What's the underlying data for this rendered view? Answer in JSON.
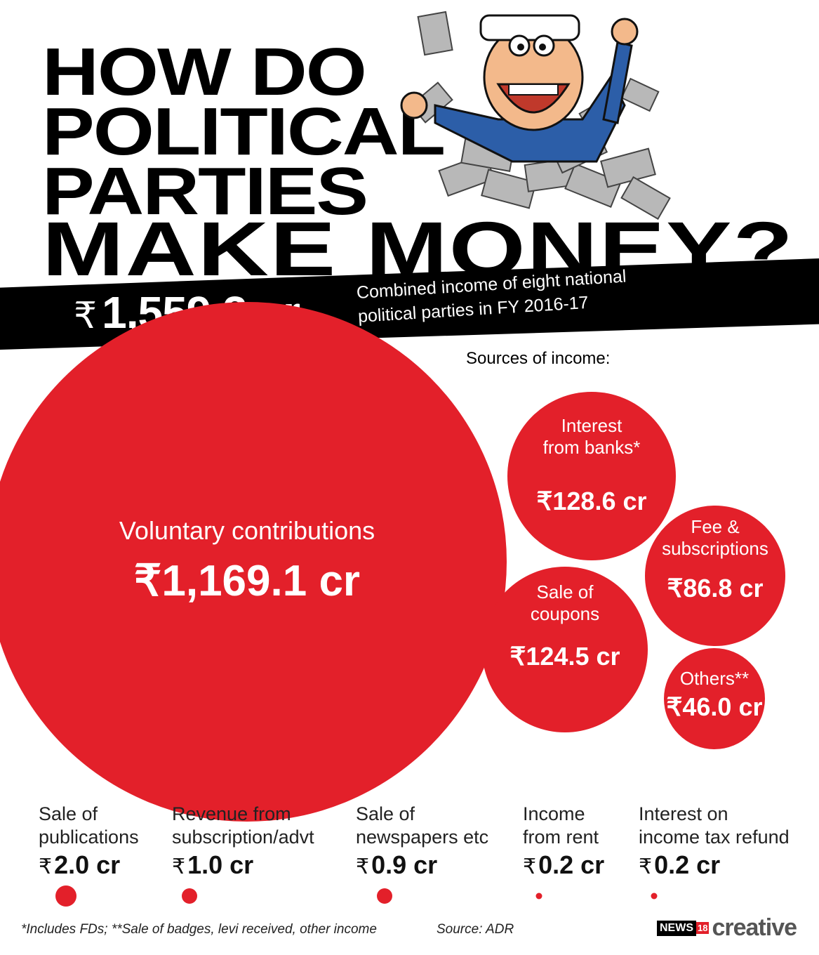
{
  "title": {
    "line1": "HOW DO",
    "line2": "POLITICAL",
    "line3": "PARTIES",
    "line4": "MAKE MONEY?"
  },
  "total": {
    "currency": "₹",
    "value": "1,559.2 cr",
    "description_line1": "Combined income of eight national",
    "description_line2": "political parties in FY 2016-17"
  },
  "sources_label": "Sources of income:",
  "colors": {
    "bubble": "#e3202a",
    "band": "#000000"
  },
  "chart_data": {
    "type": "bubble",
    "unit": "₹ cr",
    "categories": [
      "Voluntary contributions",
      "Interest from banks*",
      "Fee & subscriptions",
      "Sale of coupons",
      "Others**",
      "Sale of publications",
      "Revenue from subscription/advt",
      "Sale of newspapers etc",
      "Income from rent",
      "Interest on income tax refund"
    ],
    "values": [
      1169.1,
      128.6,
      86.8,
      124.5,
      46.0,
      2.0,
      1.0,
      0.9,
      0.2,
      0.2
    ],
    "large": [
      {
        "label_lines": [
          "Voluntary contributions"
        ],
        "value_text": "₹1,169.1 cr",
        "value": 1169.1
      },
      {
        "label_lines": [
          "Interest",
          "from banks*"
        ],
        "value_text": "₹128.6 cr",
        "value": 128.6
      },
      {
        "label_lines": [
          "Fee &",
          "subscriptions"
        ],
        "value_text": "₹86.8 cr",
        "value": 86.8
      },
      {
        "label_lines": [
          "Sale of",
          "coupons"
        ],
        "value_text": "₹124.5 cr",
        "value": 124.5
      },
      {
        "label_lines": [
          "Others**"
        ],
        "value_text": "₹46.0 cr",
        "value": 46.0
      }
    ],
    "small": [
      {
        "line1": "Sale of",
        "line2": "publications",
        "value_num": "2.0 cr",
        "value": 2.0
      },
      {
        "line1": "Revenue from",
        "line2": "subscription/advt",
        "value_num": "1.0 cr",
        "value": 1.0
      },
      {
        "line1": "Sale of",
        "line2": "newspapers etc",
        "value_num": "0.9 cr",
        "value": 0.9
      },
      {
        "line1": "Income",
        "line2": "from rent",
        "value_num": "0.2 cr",
        "value": 0.2
      },
      {
        "line1": "Interest on",
        "line2": "income tax refund",
        "value_num": "0.2 cr",
        "value": 0.2
      }
    ]
  },
  "footer": {
    "note": "*Includes FDs; **Sale of badges, levi received, other income",
    "source": "Source: ADR",
    "brand_news": "NEWS",
    "brand_18": "18",
    "brand_creative": "creative"
  }
}
